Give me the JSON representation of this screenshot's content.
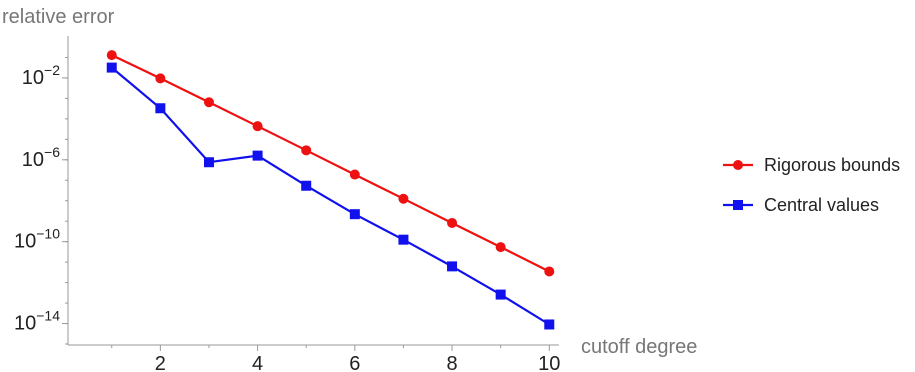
{
  "chart_data": {
    "type": "line",
    "xlabel": "cutoff degree",
    "ylabel": "relative error",
    "yscale": "log",
    "xlim": [
      0.1,
      10.2
    ],
    "ylim": [
      1e-15,
      1
    ],
    "x_ticks": [
      2,
      4,
      6,
      8,
      10
    ],
    "y_ticks": [
      {
        "value": 0.01,
        "base": "10",
        "exp": "-2"
      },
      {
        "value": 1e-06,
        "base": "10",
        "exp": "-6"
      },
      {
        "value": 1e-10,
        "base": "10",
        "exp": "-10"
      },
      {
        "value": 1e-14,
        "base": "10",
        "exp": "-14"
      }
    ],
    "x": [
      1,
      2,
      3,
      4,
      5,
      6,
      7,
      8,
      9,
      10
    ],
    "series": [
      {
        "name": "Rigorous bounds",
        "color": "#ee1111",
        "marker": "circle",
        "values": [
          0.13,
          0.0095,
          0.00065,
          4.4e-05,
          2.9e-06,
          1.9e-07,
          1.25e-08,
          8.2e-10,
          5.4e-11,
          3.5e-12
        ]
      },
      {
        "name": "Central values",
        "color": "#1111ee",
        "marker": "square",
        "values": [
          0.032,
          0.00033,
          7.6e-07,
          1.6e-06,
          5.4e-08,
          2.2e-09,
          1.25e-10,
          6.2e-12,
          2.6e-13,
          9e-15
        ]
      }
    ],
    "legend_position": "right"
  }
}
